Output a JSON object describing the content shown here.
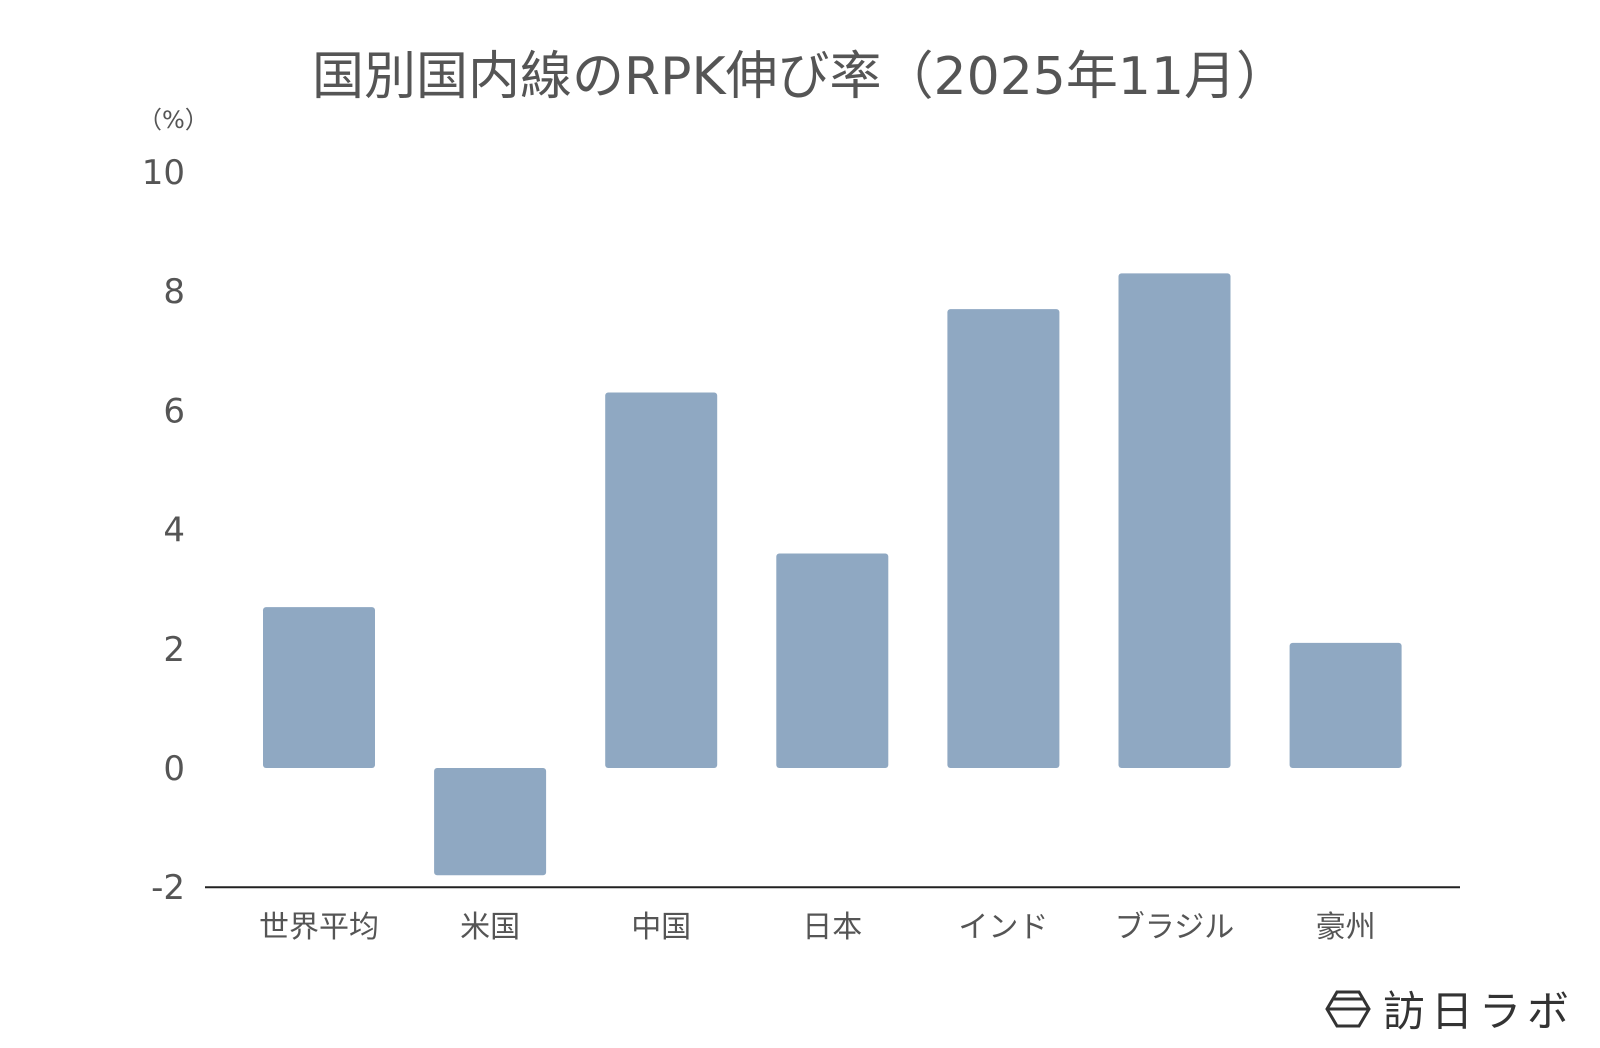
{
  "chart_data": {
    "type": "bar",
    "title": "国別国内線のRPK伸び率（2025年11月）",
    "ylabel": "（%）",
    "categories": [
      "世界平均",
      "米国",
      "中国",
      "日本",
      "インド",
      "ブラジル",
      "豪州"
    ],
    "values": [
      2.7,
      -1.8,
      6.3,
      3.6,
      7.7,
      8.3,
      2.1
    ],
    "ylim": [
      -2,
      10
    ],
    "yticks": [
      10,
      8,
      6,
      4,
      2,
      0,
      -2
    ],
    "grid": false,
    "legend": "none",
    "bar_color": "#8fa8c2"
  },
  "branding": {
    "logo_text": "訪日ラボ"
  }
}
